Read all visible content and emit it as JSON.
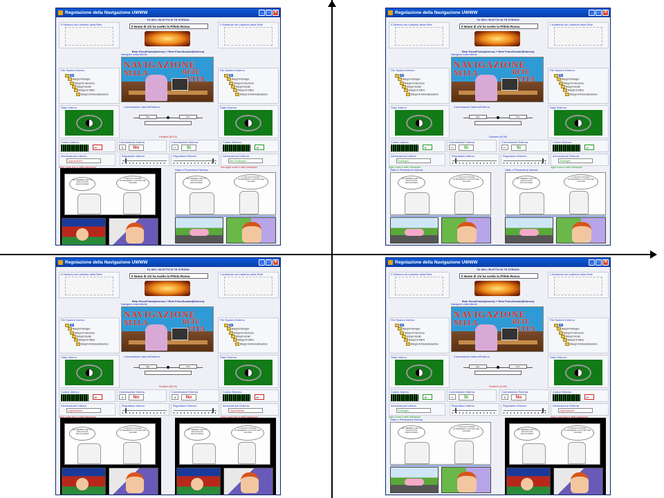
{
  "window": {
    "title": "Regolazione della Navigazione UWWW",
    "subtitle": "TU SEI L'ELETTO DI TE STESSO",
    "name_line": "Il Nome di chi  ha scelto la Pillola Rossa",
    "rete_line": "Rete PsicoFisica(Interno) + Rete PsicoSociale(Esterno)",
    "navigare_label": "Navigare nella Mente",
    "nav_art": {
      "line1": "NAVIGAZIONE",
      "line2": "NELLA",
      "line3": "RETE",
      "line4": "VITA"
    },
    "controls": {
      "minimize": "_",
      "maximize": "□",
      "close": "✕"
    }
  },
  "labels": {
    "sistema": "Il Sistema nel Labirinto della Rete",
    "ambiente": "L'Ambiente nel Labirinto della Rete",
    "fs_interno": "File System Interno",
    "fs_esterno": "File System Esterno",
    "stato_interno": "Stato Interno",
    "stato_esterno": "Stato Esterno",
    "connessione_ie": "Connessione Interno/Esterno",
    "codice_interno": "Codice Interno",
    "codice_esterno": "Codice Esterno",
    "connessione_interna": "Connessione Interna",
    "connessione_esterna": "Connessione Esterna",
    "info_interna": "Informazione Interna",
    "info_esterna": "Informazione Esterna",
    "reg_interno": "Regolatore Interno",
    "reg_esterno": "Regolatore Esterno",
    "stato_percezione": "Stato e Percezione Interna",
    "conn_box_left": "Opp.",
    "conn_box_right": "Pos."
  },
  "tree": {
    "root": "Sé",
    "items": [
      "Bisogni Fisiologici",
      "Bisogni di Sicurezza",
      "Bisogni Sociali",
      "Bisogni di Stima",
      "Bisogni di Autorealizzazione"
    ]
  },
  "comic": {
    "bubble_left": "MI, SEMBRA CHE TU NON MI STIA ASCOLTANDO",
    "bubble_right": "L'ASCOLTO PASSA ATTRAVERSO IL FILTRO DEL VALORE"
  },
  "quadrants": [
    {
      "id": "tl",
      "parallelo": "Parallelo (80,20)",
      "code_int": "20",
      "code_ext": "10",
      "conn_int_sign": "S",
      "conn_int_word": "No",
      "conn_ext_sign": "+/-",
      "conn_ext_word": "Si",
      "info_int": "Oppressione",
      "info_ext": "Ben Sostegno",
      "agire_int": "Agire come Non è nelle Interazioni",
      "agire_ext": "Non agire come è nelle Interazioni"
    },
    {
      "id": "tr",
      "parallelo": "Contrario (50,50)",
      "code_int": "11",
      "code_ext": "11",
      "conn_int_sign": "+/-",
      "conn_int_word": "Si",
      "conn_ext_sign": "+/-",
      "conn_ext_word": "Si",
      "info_int": "Sostegno",
      "info_ext": "Sostegno",
      "agire_int": "Agire come è nelle Interazioni",
      "agire_ext": "Agire come è nelle Interazioni"
    },
    {
      "id": "bl",
      "parallelo": "Parallelo (80,20)",
      "code_int": "00",
      "code_ext": "00",
      "conn_int_sign": "S",
      "conn_int_word": "No",
      "conn_ext_sign": "S",
      "conn_ext_word": "No",
      "info_int": "Oppressione",
      "info_ext": "Oppressione",
      "agire_int": "Agire come Non è nelle Interazioni",
      "agire_ext": "Agire come Non è nelle Interazioni"
    },
    {
      "id": "br",
      "parallelo": "Parallelo (20,80)",
      "code_int": "10",
      "code_ext": "20",
      "conn_int_sign": "+/-",
      "conn_int_word": "Si",
      "conn_ext_sign": "S",
      "conn_ext_word": "No",
      "info_int": "Sostegno",
      "info_ext": "Oppressione",
      "agire_int": "Agire come è nelle Interazioni",
      "agire_ext": "Agire come Non è nelle Interazioni"
    }
  ],
  "colors": {
    "title_blue": "#0a3ea8",
    "label_blue": "#1a35c8",
    "green_ok": "#1c9a1c",
    "red_no": "#cc1f1f",
    "yin_bg": "#127a17"
  }
}
